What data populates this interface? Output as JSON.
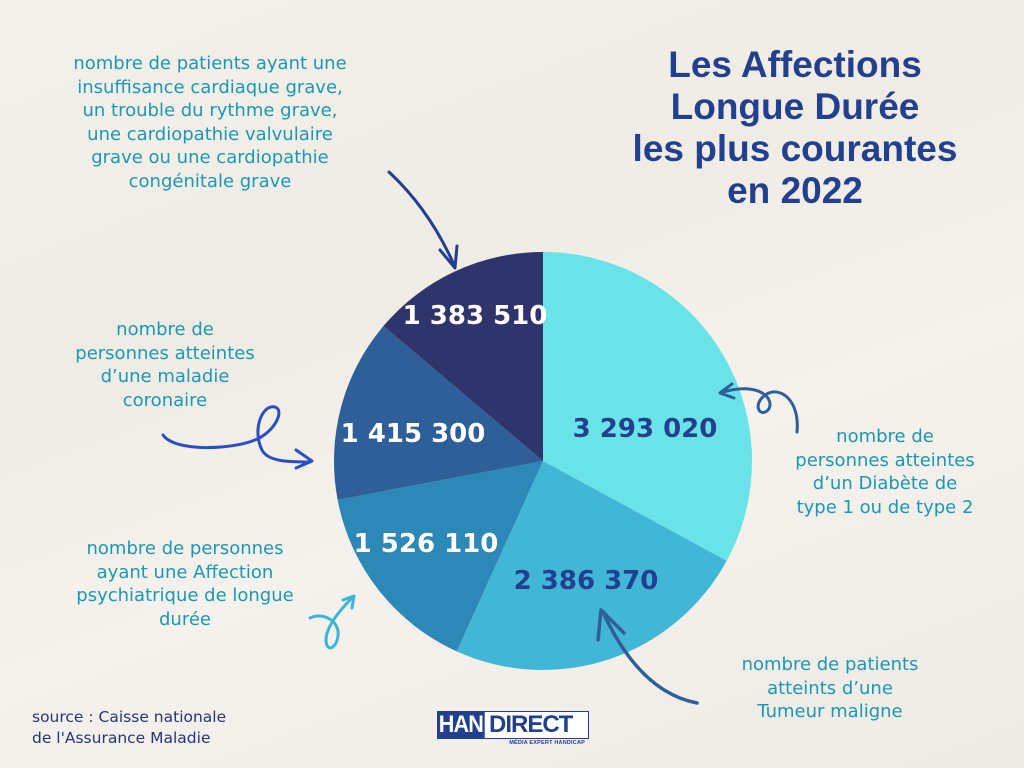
{
  "title": {
    "lines": [
      "Les Affections",
      "Longue Durée",
      "les plus courantes",
      "en 2022"
    ]
  },
  "labels": {
    "cardiac": [
      "nombre de patients ayant une",
      "insuffisance cardiaque grave,",
      "un trouble du rythme grave,",
      "une cardiopathie valvulaire",
      "grave ou une cardiopathie",
      "congénitale grave"
    ],
    "coronary": [
      "nombre de",
      "personnes atteintes",
      "d’une maladie",
      "coronaire"
    ],
    "psychiatric": [
      "nombre de personnes",
      "ayant une Affection",
      "psychiatrique de longue",
      "durée"
    ],
    "diabetes": [
      "nombre de",
      "personnes atteintes",
      "d’un Diabète de",
      "type 1 ou de type 2"
    ],
    "tumor": [
      "nombre de patients",
      "atteints d’une",
      "Tumeur maligne"
    ]
  },
  "source": {
    "lines": [
      "source : Caisse nationale",
      "de l'Assurance Maladie"
    ]
  },
  "logo": {
    "part1": "HAN",
    "part2": "DIRECT",
    "tagline": "MÉDIA EXPERT HANDICAP"
  },
  "colors": {
    "title": "#23408e",
    "label_text": "#1b98b4",
    "diabetes": "#6ae3e8",
    "tumor": "#42b6d6",
    "psychiatric": "#2b88b7",
    "coronary": "#2e5f98",
    "cardiac": "#30346c",
    "arrow_dark": "#23408e",
    "arrow_light": "#3ab4d8"
  },
  "chart_data": {
    "type": "pie",
    "title": "Les Affections Longue Durée les plus courantes en 2022",
    "categories": [
      "Diabète de type 1 ou de type 2",
      "Tumeur maligne",
      "Affection psychiatrique de longue durée",
      "Maladie coronaire",
      "Insuffisance cardiaque grave, trouble du rythme grave, cardiopathie valvulaire grave ou cardiopathie congénitale grave"
    ],
    "values": [
      3293020,
      2386370,
      1526110,
      1415300,
      1383510
    ],
    "value_labels": [
      "3 293 020",
      "2 386 370",
      "1 526 110",
      "1 415 300",
      "1 383 510"
    ],
    "colors": [
      "#6ae3e8",
      "#42b6d6",
      "#2b88b7",
      "#2e5f98",
      "#30346c"
    ],
    "start_angle": "12 o'clock",
    "direction": "clockwise",
    "source": "Caisse nationale de l'Assurance Maladie"
  }
}
